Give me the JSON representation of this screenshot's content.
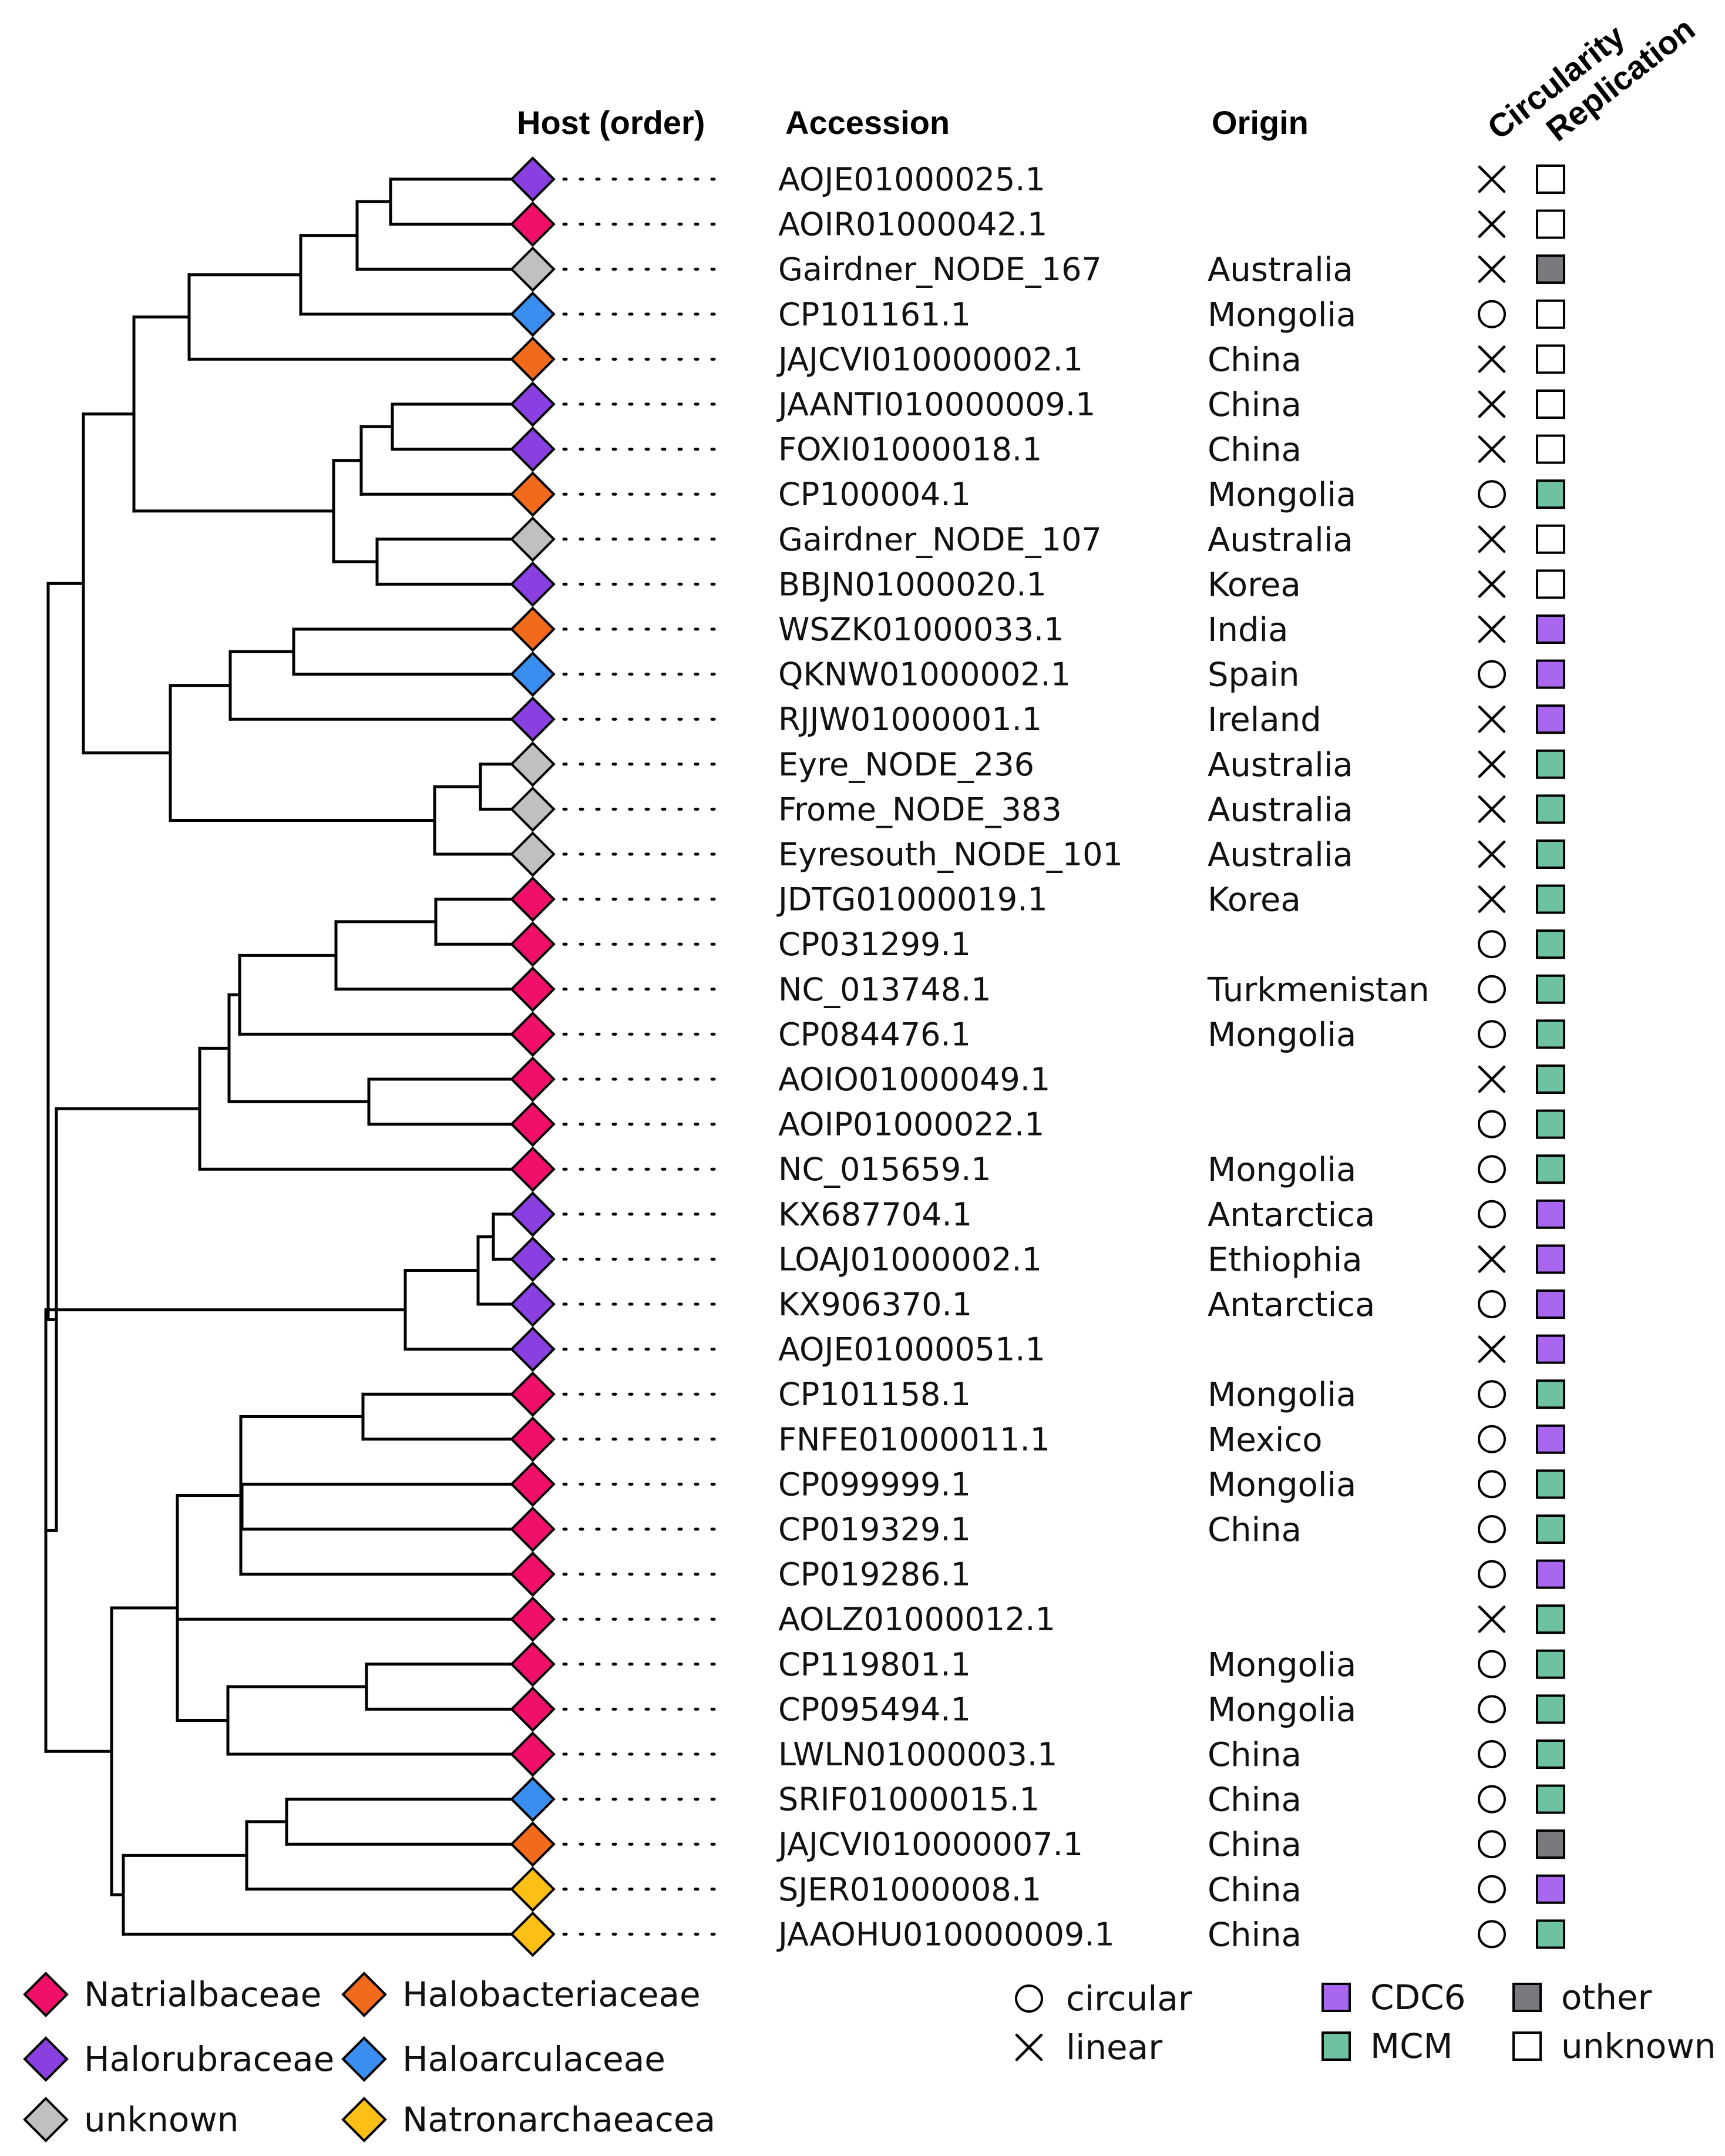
{
  "headers": {
    "host": "Host (order)",
    "accession": "Accession",
    "origin": "Origin",
    "circularity": "Circularity",
    "replication": "Replication"
  },
  "colors": {
    "Natrialbaceae": "#f0106a",
    "Halorubraceae": "#8a3fe0",
    "unknown_host": "#c0c0c0",
    "Halobacteriaceae": "#f26a1b",
    "Haloarculaceae": "#3a8ef0",
    "Natronarchaeacea": "#fbbf16",
    "CDC6": "#a867ee",
    "MCM": "#6fc2a0",
    "other": "#7a7a7e",
    "unknown_rep": "#ffffff"
  },
  "rows": [
    {
      "host": "Halorubraceae",
      "accession": "AOJE01000025.1",
      "origin": "",
      "circularity": "linear",
      "replication": "unknown"
    },
    {
      "host": "Natrialbaceae",
      "accession": "AOIR01000042.1",
      "origin": "",
      "circularity": "linear",
      "replication": "unknown"
    },
    {
      "host": "unknown",
      "accession": "Gairdner_NODE_167",
      "origin": "Australia",
      "circularity": "linear",
      "replication": "other"
    },
    {
      "host": "Haloarculaceae",
      "accession": "CP101161.1",
      "origin": "Mongolia",
      "circularity": "circular",
      "replication": "unknown"
    },
    {
      "host": "Halobacteriaceae",
      "accession": "JAJCVI010000002.1",
      "origin": "China",
      "circularity": "linear",
      "replication": "unknown"
    },
    {
      "host": "Halorubraceae",
      "accession": "JAANTI010000009.1",
      "origin": "China",
      "circularity": "linear",
      "replication": "unknown"
    },
    {
      "host": "Halorubraceae",
      "accession": "FOXI01000018.1",
      "origin": "China",
      "circularity": "linear",
      "replication": "unknown"
    },
    {
      "host": "Halobacteriaceae",
      "accession": "CP100004.1",
      "origin": "Mongolia",
      "circularity": "circular",
      "replication": "MCM"
    },
    {
      "host": "unknown",
      "accession": "Gairdner_NODE_107",
      "origin": "Australia",
      "circularity": "linear",
      "replication": "unknown"
    },
    {
      "host": "Halorubraceae",
      "accession": "BBJN01000020.1",
      "origin": "Korea",
      "circularity": "linear",
      "replication": "unknown"
    },
    {
      "host": "Halobacteriaceae",
      "accession": "WSZK01000033.1",
      "origin": "India",
      "circularity": "linear",
      "replication": "CDC6"
    },
    {
      "host": "Haloarculaceae",
      "accession": "QKNW01000002.1",
      "origin": "Spain",
      "circularity": "circular",
      "replication": "CDC6"
    },
    {
      "host": "Halorubraceae",
      "accession": "RJJW01000001.1",
      "origin": "Ireland",
      "circularity": "linear",
      "replication": "CDC6"
    },
    {
      "host": "unknown",
      "accession": "Eyre_NODE_236",
      "origin": "Australia",
      "circularity": "linear",
      "replication": "MCM"
    },
    {
      "host": "unknown",
      "accession": "Frome_NODE_383",
      "origin": "Australia",
      "circularity": "linear",
      "replication": "MCM"
    },
    {
      "host": "unknown",
      "accession": "Eyresouth_NODE_101",
      "origin": "Australia",
      "circularity": "linear",
      "replication": "MCM"
    },
    {
      "host": "Natrialbaceae",
      "accession": "JDTG01000019.1",
      "origin": "Korea",
      "circularity": "linear",
      "replication": "MCM"
    },
    {
      "host": "Natrialbaceae",
      "accession": "CP031299.1",
      "origin": "",
      "circularity": "circular",
      "replication": "MCM"
    },
    {
      "host": "Natrialbaceae",
      "accession": "NC_013748.1",
      "origin": "Turkmenistan",
      "circularity": "circular",
      "replication": "MCM"
    },
    {
      "host": "Natrialbaceae",
      "accession": "CP084476.1",
      "origin": "Mongolia",
      "circularity": "circular",
      "replication": "MCM"
    },
    {
      "host": "Natrialbaceae",
      "accession": "AOIO01000049.1",
      "origin": "",
      "circularity": "linear",
      "replication": "MCM"
    },
    {
      "host": "Natrialbaceae",
      "accession": "AOIP01000022.1",
      "origin": "",
      "circularity": "circular",
      "replication": "MCM"
    },
    {
      "host": "Natrialbaceae",
      "accession": "NC_015659.1",
      "origin": "Mongolia",
      "circularity": "circular",
      "replication": "MCM"
    },
    {
      "host": "Halorubraceae",
      "accession": "KX687704.1",
      "origin": "Antarctica",
      "circularity": "circular",
      "replication": "CDC6"
    },
    {
      "host": "Halorubraceae",
      "accession": "LOAJ01000002.1",
      "origin": "Ethiophia",
      "circularity": "linear",
      "replication": "CDC6"
    },
    {
      "host": "Halorubraceae",
      "accession": "KX906370.1",
      "origin": "Antarctica",
      "circularity": "circular",
      "replication": "CDC6"
    },
    {
      "host": "Halorubraceae",
      "accession": "AOJE01000051.1",
      "origin": "",
      "circularity": "linear",
      "replication": "CDC6"
    },
    {
      "host": "Natrialbaceae",
      "accession": "CP101158.1",
      "origin": "Mongolia",
      "circularity": "circular",
      "replication": "MCM"
    },
    {
      "host": "Natrialbaceae",
      "accession": "FNFE01000011.1",
      "origin": "Mexico",
      "circularity": "circular",
      "replication": "CDC6"
    },
    {
      "host": "Natrialbaceae",
      "accession": "CP099999.1",
      "origin": "Mongolia",
      "circularity": "circular",
      "replication": "MCM"
    },
    {
      "host": "Natrialbaceae",
      "accession": "CP019329.1",
      "origin": "China",
      "circularity": "circular",
      "replication": "MCM"
    },
    {
      "host": "Natrialbaceae",
      "accession": "CP019286.1",
      "origin": "",
      "circularity": "circular",
      "replication": "CDC6"
    },
    {
      "host": "Natrialbaceae",
      "accession": "AOLZ01000012.1",
      "origin": "",
      "circularity": "linear",
      "replication": "MCM"
    },
    {
      "host": "Natrialbaceae",
      "accession": "CP119801.1",
      "origin": "Mongolia",
      "circularity": "circular",
      "replication": "MCM"
    },
    {
      "host": "Natrialbaceae",
      "accession": "CP095494.1",
      "origin": "Mongolia",
      "circularity": "circular",
      "replication": "MCM"
    },
    {
      "host": "Natrialbaceae",
      "accession": "LWLN01000003.1",
      "origin": "China",
      "circularity": "circular",
      "replication": "MCM"
    },
    {
      "host": "Haloarculaceae",
      "accession": "SRIF01000015.1",
      "origin": "China",
      "circularity": "circular",
      "replication": "MCM"
    },
    {
      "host": "Halobacteriaceae",
      "accession": "JAJCVI010000007.1",
      "origin": "China",
      "circularity": "circular",
      "replication": "other"
    },
    {
      "host": "Natronarchaeacea",
      "accession": "SJER01000008.1",
      "origin": "China",
      "circularity": "circular",
      "replication": "CDC6"
    },
    {
      "host": "Natronarchaeacea",
      "accession": "JAAOHU010000009.1",
      "origin": "China",
      "circularity": "circular",
      "replication": "MCM"
    }
  ],
  "legend": {
    "hosts": [
      "Natrialbaceae",
      "Halobacteriaceae",
      "Halorubraceae",
      "Haloarculaceae",
      "unknown",
      "Natronarchaeacea"
    ],
    "circularity": [
      "circular",
      "linear"
    ],
    "replication": [
      "CDC6",
      "other",
      "MCM",
      "unknown"
    ]
  }
}
